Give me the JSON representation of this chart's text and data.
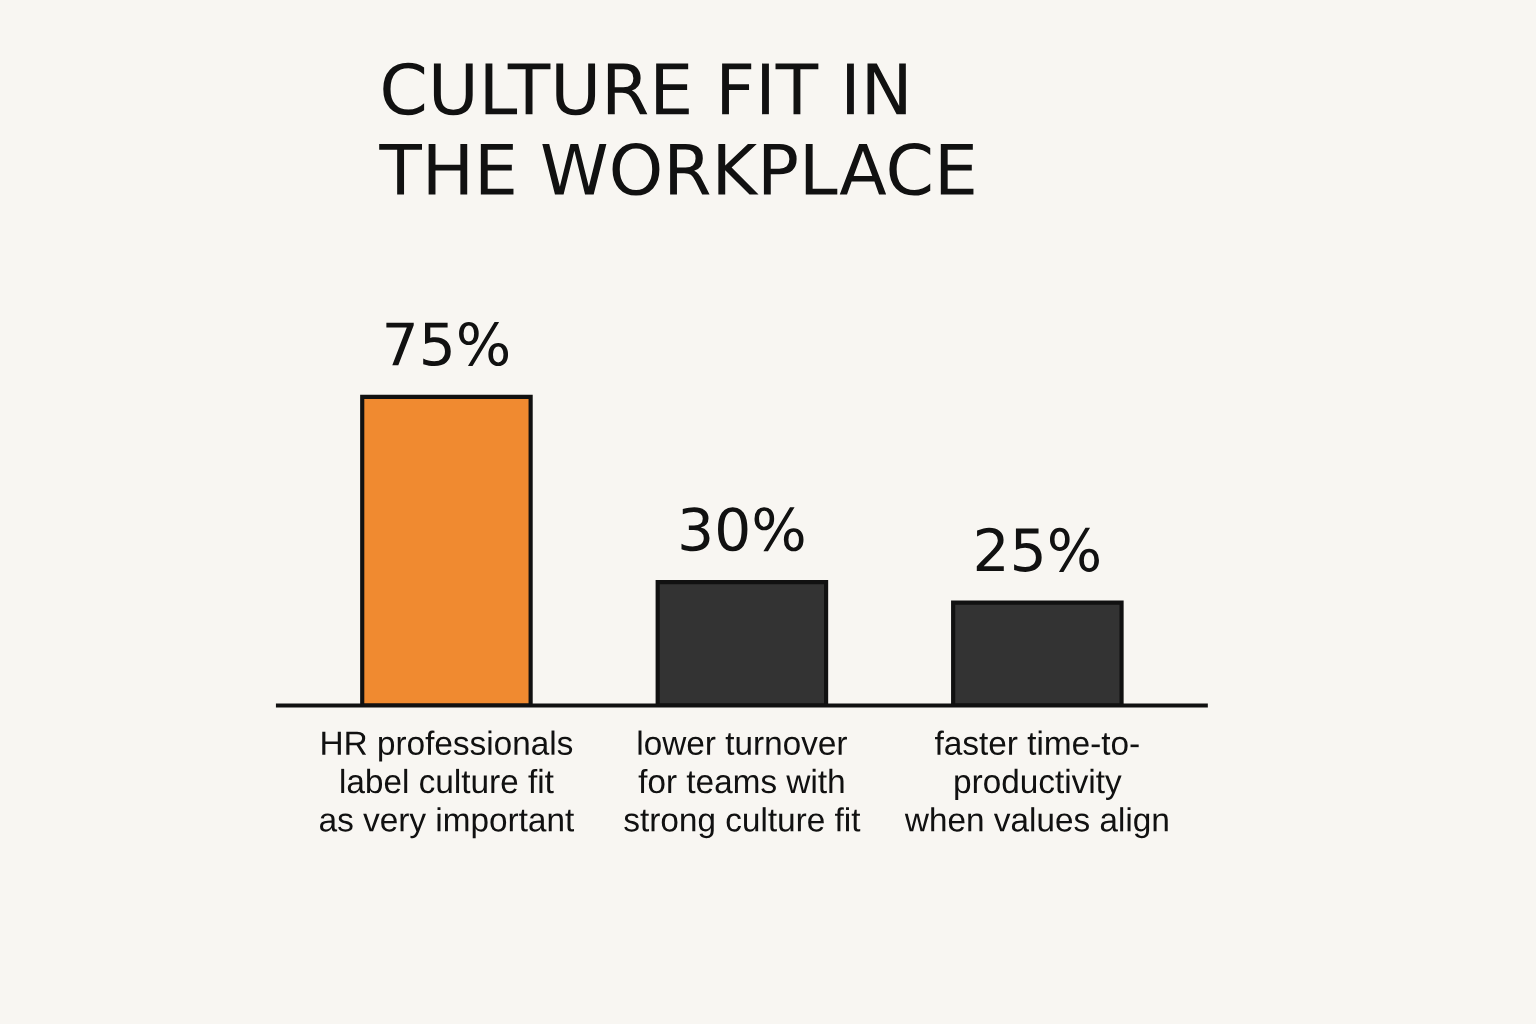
{
  "chart_data": {
    "type": "bar",
    "title": "CULTURE FIT IN\nTHE WORKPLACE",
    "categories": [
      "HR professionals\nlabel culture fit\nas very important",
      "lower turnover\nfor teams with\nstrong culture fit",
      "faster time-to-\nproductivity\nwhen values align"
    ],
    "values": [
      75,
      30,
      25
    ],
    "colors": [
      "#f08a30",
      "#333333",
      "#333333"
    ],
    "value_labels": [
      "75%",
      "30%",
      "25%"
    ],
    "grid": false,
    "legend": false
  }
}
